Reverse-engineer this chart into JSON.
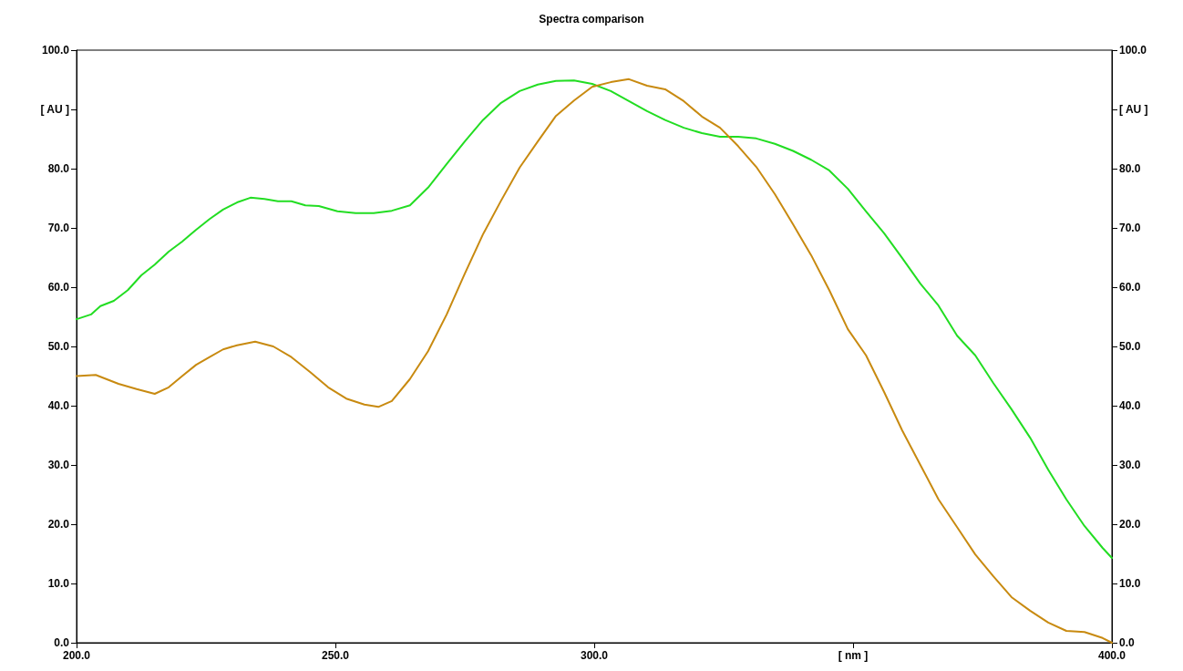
{
  "chart_data": {
    "type": "line",
    "title": "Spectra comparison",
    "xlim": [
      200,
      400
    ],
    "xticks": [
      {
        "value": 200,
        "label": "200.0"
      },
      {
        "value": 250,
        "label": "250.0"
      },
      {
        "value": 300,
        "label": "300.0"
      },
      {
        "value": 350,
        "label": "[ nm ]"
      },
      {
        "value": 400,
        "label": "400.0"
      }
    ],
    "ylim": [
      0,
      100
    ],
    "yticks": [
      {
        "value": 0,
        "label": "0.0"
      },
      {
        "value": 10,
        "label": "10.0"
      },
      {
        "value": 20,
        "label": "20.0"
      },
      {
        "value": 30,
        "label": "30.0"
      },
      {
        "value": 40,
        "label": "40.0"
      },
      {
        "value": 50,
        "label": "50.0"
      },
      {
        "value": 60,
        "label": "60.0"
      },
      {
        "value": 70,
        "label": "70.0"
      },
      {
        "value": 80,
        "label": "80.0"
      },
      {
        "value": 90,
        "label": "[ AU ]"
      },
      {
        "value": 100,
        "label": "100.0"
      }
    ],
    "y2lim": [
      0,
      100
    ],
    "y2ticks": [
      {
        "value": 0,
        "label": "0.0"
      },
      {
        "value": 10,
        "label": "10.0"
      },
      {
        "value": 20,
        "label": "20.0"
      },
      {
        "value": 30,
        "label": "30.0"
      },
      {
        "value": 40,
        "label": "40.0"
      },
      {
        "value": 50,
        "label": "50.0"
      },
      {
        "value": 60,
        "label": "60.0"
      },
      {
        "value": 70,
        "label": "70.0"
      },
      {
        "value": 80,
        "label": "80.0"
      },
      {
        "value": 90,
        "label": "[ AU ]"
      },
      {
        "value": 100,
        "label": "100.0"
      }
    ],
    "grid": false,
    "marker": "none",
    "line_style": "solid",
    "series": [
      {
        "color": "#22dd22",
        "x": [
          200,
          202.8,
          204.6,
          207.2,
          209.9,
          212.5,
          215.1,
          217.8,
          220.4,
          223.1,
          225.7,
          228.3,
          231,
          233.6,
          236.3,
          238.9,
          241.5,
          244.2,
          246.8,
          250.4,
          253.9,
          257.4,
          260.9,
          264.4,
          267.9,
          271.5,
          275,
          278.5,
          282,
          285.6,
          289.1,
          292.6,
          296.1,
          299.6,
          303.2,
          306.7,
          310.2,
          313.7,
          317.3,
          320.8,
          324.3,
          327.8,
          331.3,
          334.9,
          338.4,
          341.9,
          345.4,
          349,
          352.5,
          356,
          359.5,
          363,
          366.5,
          370.1,
          373.6,
          377.1,
          380.6,
          384.2,
          387.7,
          391.2,
          394.7,
          398.2,
          400
        ],
        "values": [
          54.6,
          55.4,
          56.8,
          57.7,
          59.5,
          62.0,
          63.8,
          66.0,
          67.7,
          69.7,
          71.5,
          73.1,
          74.3,
          75.1,
          74.9,
          74.5,
          74.5,
          73.8,
          73.7,
          72.8,
          72.5,
          72.5,
          72.9,
          73.8,
          76.8,
          80.8,
          84.6,
          88.2,
          91.1,
          93.1,
          94.2,
          94.8,
          94.9,
          94.3,
          93.1,
          91.4,
          89.7,
          88.2,
          86.9,
          86.0,
          85.4,
          85.4,
          85.1,
          84.2,
          83.0,
          81.5,
          79.7,
          76.6,
          72.8,
          69.1,
          64.9,
          60.6,
          56.9,
          51.8,
          48.5,
          43.8,
          39.4,
          34.6,
          29.2,
          24.2,
          19.7,
          16.0,
          14.3
        ]
      },
      {
        "color": "#c88a10",
        "x": [
          200,
          203.7,
          208.1,
          211.6,
          215.1,
          217.8,
          220.4,
          223.1,
          225.7,
          228.3,
          231,
          234.5,
          238,
          241.5,
          245.1,
          248.6,
          252.1,
          255.6,
          258.3,
          260.9,
          264.4,
          267.9,
          271.5,
          275,
          278.5,
          282,
          285.6,
          289.1,
          292.6,
          296.1,
          299.6,
          303.2,
          306.7,
          310.2,
          313.7,
          317.3,
          320.8,
          324.3,
          327.8,
          331.3,
          334.9,
          338.4,
          341.9,
          345.4,
          349,
          352.5,
          356,
          359.5,
          363,
          366.5,
          370.1,
          373.6,
          377.1,
          380.6,
          384.2,
          387.7,
          391.2,
          394.7,
          398.2,
          400
        ],
        "values": [
          45.0,
          45.2,
          43.7,
          42.8,
          42.0,
          43.1,
          45.0,
          46.9,
          48.2,
          49.5,
          50.2,
          50.8,
          50.0,
          48.2,
          45.7,
          43.1,
          41.2,
          40.2,
          39.8,
          40.8,
          44.5,
          49.2,
          55.4,
          62.3,
          68.9,
          74.6,
          80.2,
          84.6,
          88.9,
          91.5,
          93.8,
          94.6,
          95.1,
          94.0,
          93.4,
          91.4,
          88.8,
          86.9,
          83.8,
          80.3,
          75.7,
          70.6,
          65.4,
          59.5,
          52.9,
          48.5,
          42.3,
          35.8,
          30.0,
          24.2,
          19.5,
          14.9,
          11.2,
          7.7,
          5.4,
          3.4,
          2.0,
          1.8,
          0.8,
          0
        ]
      }
    ]
  }
}
